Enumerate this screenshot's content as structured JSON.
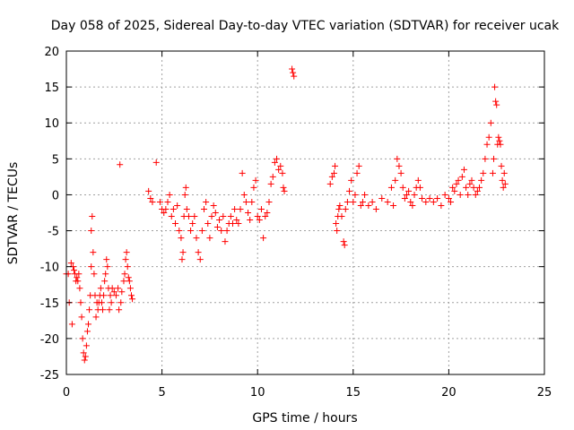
{
  "chart_data": {
    "type": "scatter",
    "title": "Day 058 of 2025, Sidereal Day-to-day VTEC variation (SDTVAR) for receiver ucak",
    "xlabel": "GPS time / hours",
    "ylabel": "SDTVAR / TECUs",
    "xlim": [
      0,
      25
    ],
    "ylim": [
      -25,
      20
    ],
    "xticks": [
      0,
      5,
      10,
      15,
      20,
      25
    ],
    "yticks": [
      -25,
      -20,
      -15,
      -10,
      -5,
      0,
      5,
      10,
      15,
      20
    ],
    "grid": true,
    "marker": "+",
    "color": "#ff0000",
    "series": [
      {
        "name": "SDTVAR",
        "points": [
          [
            0.0,
            -11
          ],
          [
            0.1,
            -11
          ],
          [
            0.15,
            -15
          ],
          [
            0.25,
            -9.5
          ],
          [
            0.3,
            -18
          ],
          [
            0.35,
            -10
          ],
          [
            0.4,
            -10.5
          ],
          [
            0.45,
            -11
          ],
          [
            0.5,
            -12
          ],
          [
            0.55,
            -11.5
          ],
          [
            0.6,
            -12
          ],
          [
            0.65,
            -11
          ],
          [
            0.7,
            -13
          ],
          [
            0.75,
            -15
          ],
          [
            0.8,
            -17
          ],
          [
            0.85,
            -20
          ],
          [
            0.9,
            -22
          ],
          [
            0.95,
            -23
          ],
          [
            1.0,
            -22.5
          ],
          [
            1.05,
            -21
          ],
          [
            1.1,
            -19
          ],
          [
            1.15,
            -18
          ],
          [
            1.2,
            -16
          ],
          [
            1.25,
            -14
          ],
          [
            1.3,
            -10
          ],
          [
            1.3,
            -5
          ],
          [
            1.35,
            -3
          ],
          [
            1.4,
            -8
          ],
          [
            1.45,
            -11
          ],
          [
            1.5,
            -14
          ],
          [
            1.55,
            -17
          ],
          [
            1.6,
            -15
          ],
          [
            1.65,
            -16
          ],
          [
            1.7,
            -15
          ],
          [
            1.75,
            -14
          ],
          [
            1.8,
            -13
          ],
          [
            1.85,
            -15
          ],
          [
            1.9,
            -16
          ],
          [
            1.95,
            -14
          ],
          [
            2.0,
            -12
          ],
          [
            2.05,
            -11
          ],
          [
            2.1,
            -9
          ],
          [
            2.15,
            -10
          ],
          [
            2.2,
            -13
          ],
          [
            2.25,
            -16
          ],
          [
            2.3,
            -14
          ],
          [
            2.35,
            -15
          ],
          [
            2.4,
            -13
          ],
          [
            2.5,
            -13.5
          ],
          [
            2.6,
            -14
          ],
          [
            2.7,
            -13
          ],
          [
            2.75,
            -16
          ],
          [
            2.8,
            4.2
          ],
          [
            2.85,
            -15
          ],
          [
            2.9,
            -13.5
          ],
          [
            3.0,
            -12
          ],
          [
            3.05,
            -11
          ],
          [
            3.1,
            -9
          ],
          [
            3.15,
            -8
          ],
          [
            3.2,
            -10
          ],
          [
            3.25,
            -11.5
          ],
          [
            3.3,
            -12
          ],
          [
            3.35,
            -13
          ],
          [
            3.4,
            -14
          ],
          [
            3.45,
            -14.5
          ],
          [
            4.3,
            0.5
          ],
          [
            4.4,
            -0.5
          ],
          [
            4.5,
            -1
          ],
          [
            4.7,
            4.5
          ],
          [
            4.9,
            -1
          ],
          [
            5.0,
            -2
          ],
          [
            5.1,
            -2.5
          ],
          [
            5.2,
            -2
          ],
          [
            5.3,
            -1
          ],
          [
            5.4,
            0
          ],
          [
            5.5,
            -3
          ],
          [
            5.6,
            -2
          ],
          [
            5.7,
            -4
          ],
          [
            5.8,
            -1.5
          ],
          [
            5.9,
            -5
          ],
          [
            6.0,
            -6
          ],
          [
            6.05,
            -9
          ],
          [
            6.1,
            -8
          ],
          [
            6.15,
            -3
          ],
          [
            6.2,
            0
          ],
          [
            6.25,
            1
          ],
          [
            6.3,
            -2
          ],
          [
            6.4,
            -3
          ],
          [
            6.5,
            -5
          ],
          [
            6.6,
            -4
          ],
          [
            6.7,
            -3
          ],
          [
            6.8,
            -6
          ],
          [
            6.9,
            -8
          ],
          [
            7.0,
            -9
          ],
          [
            7.1,
            -5
          ],
          [
            7.2,
            -2
          ],
          [
            7.3,
            -1
          ],
          [
            7.4,
            -4
          ],
          [
            7.5,
            -6
          ],
          [
            7.6,
            -3
          ],
          [
            7.7,
            -1.5
          ],
          [
            7.8,
            -2.5
          ],
          [
            7.9,
            -4.5
          ],
          [
            8.0,
            -3.5
          ],
          [
            8.1,
            -5
          ],
          [
            8.2,
            -3
          ],
          [
            8.3,
            -6.5
          ],
          [
            8.4,
            -5
          ],
          [
            8.5,
            -4
          ],
          [
            8.6,
            -3
          ],
          [
            8.7,
            -4
          ],
          [
            8.8,
            -2
          ],
          [
            8.9,
            -3.5
          ],
          [
            9.0,
            -4
          ],
          [
            9.1,
            -2
          ],
          [
            9.2,
            3
          ],
          [
            9.3,
            0
          ],
          [
            9.4,
            -1
          ],
          [
            9.5,
            -2.5
          ],
          [
            9.6,
            -3.5
          ],
          [
            9.7,
            -1
          ],
          [
            9.8,
            1
          ],
          [
            9.9,
            2
          ],
          [
            10.0,
            -3
          ],
          [
            10.1,
            -3.5
          ],
          [
            10.2,
            -2
          ],
          [
            10.3,
            -6
          ],
          [
            10.4,
            -3
          ],
          [
            10.5,
            -2.5
          ],
          [
            10.6,
            -1
          ],
          [
            10.7,
            1.5
          ],
          [
            10.8,
            2.5
          ],
          [
            10.9,
            4.5
          ],
          [
            11.0,
            5
          ],
          [
            11.1,
            3.5
          ],
          [
            11.2,
            4
          ],
          [
            11.3,
            3
          ],
          [
            11.35,
            1
          ],
          [
            11.4,
            0.5
          ],
          [
            11.8,
            17.5
          ],
          [
            11.85,
            17
          ],
          [
            11.9,
            16.5
          ],
          [
            13.8,
            1.5
          ],
          [
            13.9,
            2.5
          ],
          [
            14.0,
            3
          ],
          [
            14.05,
            4
          ],
          [
            14.1,
            -4
          ],
          [
            14.15,
            -5
          ],
          [
            14.2,
            -3
          ],
          [
            14.25,
            -2
          ],
          [
            14.3,
            -1.5
          ],
          [
            14.4,
            -3
          ],
          [
            14.5,
            -6.5
          ],
          [
            14.55,
            -7
          ],
          [
            14.6,
            -2
          ],
          [
            14.7,
            -1
          ],
          [
            14.8,
            0.5
          ],
          [
            14.9,
            2
          ],
          [
            15.0,
            -1
          ],
          [
            15.1,
            0
          ],
          [
            15.2,
            3
          ],
          [
            15.3,
            4
          ],
          [
            15.4,
            -1.5
          ],
          [
            15.5,
            -1
          ],
          [
            15.6,
            0
          ],
          [
            15.8,
            -1.5
          ],
          [
            16.0,
            -1
          ],
          [
            16.2,
            -2
          ],
          [
            16.5,
            -0.5
          ],
          [
            16.8,
            -1
          ],
          [
            17.0,
            1
          ],
          [
            17.1,
            -1.5
          ],
          [
            17.2,
            2
          ],
          [
            17.3,
            5
          ],
          [
            17.4,
            4
          ],
          [
            17.5,
            3
          ],
          [
            17.6,
            1
          ],
          [
            17.7,
            -0.5
          ],
          [
            17.8,
            0
          ],
          [
            17.9,
            0.5
          ],
          [
            18.0,
            -1
          ],
          [
            18.1,
            -1.5
          ],
          [
            18.2,
            0
          ],
          [
            18.3,
            1
          ],
          [
            18.4,
            2
          ],
          [
            18.5,
            1
          ],
          [
            18.6,
            -0.5
          ],
          [
            18.8,
            -1
          ],
          [
            19.0,
            -0.5
          ],
          [
            19.2,
            -1
          ],
          [
            19.4,
            -0.5
          ],
          [
            19.6,
            -1.5
          ],
          [
            19.8,
            0
          ],
          [
            20.0,
            -0.5
          ],
          [
            20.1,
            -1
          ],
          [
            20.2,
            1
          ],
          [
            20.3,
            0.5
          ],
          [
            20.4,
            1.5
          ],
          [
            20.5,
            2
          ],
          [
            20.6,
            0
          ],
          [
            20.7,
            2.5
          ],
          [
            20.8,
            3.5
          ],
          [
            20.9,
            1
          ],
          [
            21.0,
            0
          ],
          [
            21.1,
            1.5
          ],
          [
            21.2,
            2
          ],
          [
            21.3,
            1
          ],
          [
            21.4,
            0
          ],
          [
            21.5,
            0.5
          ],
          [
            21.6,
            1
          ],
          [
            21.7,
            2
          ],
          [
            21.8,
            3
          ],
          [
            21.9,
            5
          ],
          [
            22.0,
            7
          ],
          [
            22.1,
            8
          ],
          [
            22.2,
            10
          ],
          [
            22.3,
            3
          ],
          [
            22.35,
            5
          ],
          [
            22.4,
            15
          ],
          [
            22.45,
            13
          ],
          [
            22.5,
            12.5
          ],
          [
            22.55,
            7
          ],
          [
            22.6,
            8
          ],
          [
            22.65,
            7.5
          ],
          [
            22.7,
            7
          ],
          [
            22.75,
            4
          ],
          [
            22.8,
            2
          ],
          [
            22.85,
            1
          ],
          [
            22.9,
            3
          ],
          [
            22.95,
            1.5
          ]
        ]
      }
    ]
  }
}
